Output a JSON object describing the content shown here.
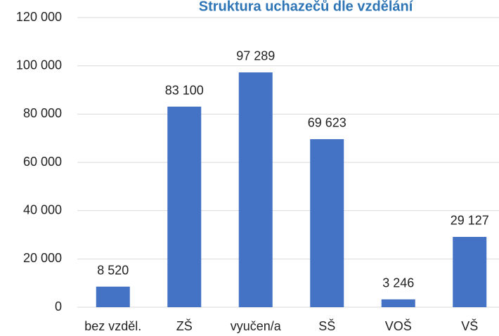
{
  "chart_data": {
    "type": "bar",
    "title": "Struktura uchazečů dle vzdělání",
    "categories": [
      "bez vzděl.",
      "ZŠ",
      "vyučen/a",
      "SŠ",
      "VOŠ",
      "VŠ"
    ],
    "values": [
      8520,
      83100,
      97289,
      69623,
      3246,
      29127
    ],
    "value_labels": [
      "8 520",
      "83 100",
      "97 289",
      "69 623",
      "3 246",
      "29 127"
    ],
    "color": "#4472c4",
    "ylim": [
      0,
      120000
    ],
    "yticks": [
      0,
      {
        "value": 20000,
        "label": "20 000"
      },
      {
        "value": 40000,
        "label": "40 000"
      },
      {
        "value": 60000,
        "label": "60 000"
      },
      {
        "value": 80000,
        "label": "80 000"
      },
      {
        "value": 100000,
        "label": "100 000"
      },
      {
        "value": 120000,
        "label": "120 000"
      }
    ],
    "grid": true
  }
}
